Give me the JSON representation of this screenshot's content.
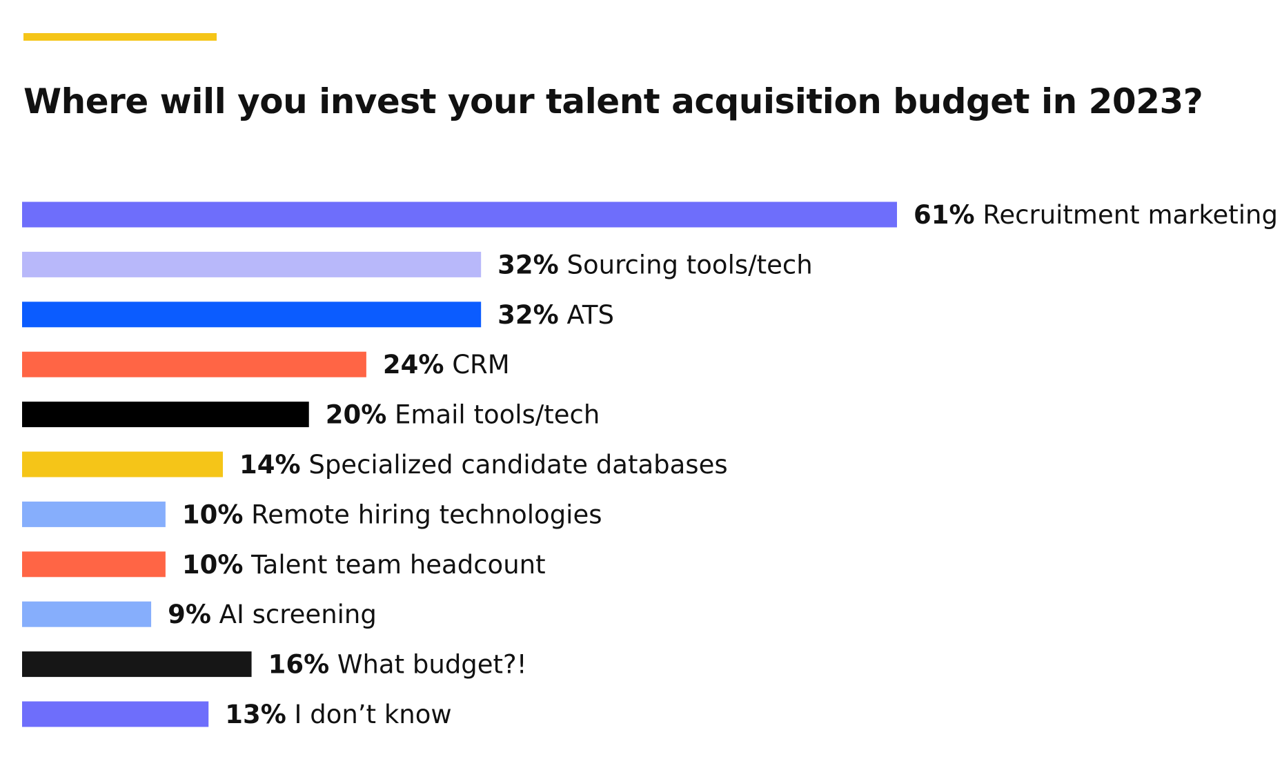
{
  "chart_data": {
    "type": "bar",
    "orientation": "horizontal",
    "title": "Where will you invest your talent acquisition budget in 2023?",
    "accent_color": "#F5C518",
    "unit": "%",
    "xlim": [
      0,
      61
    ],
    "categories": [
      "Recruitment marketing",
      "Sourcing tools/tech",
      "ATS",
      "CRM",
      "Email tools/tech",
      "Specialized candidate databases",
      "Remote hiring technologies",
      "Talent team headcount",
      "AI screening",
      "What budget?!",
      "I don’t know"
    ],
    "values": [
      61,
      32,
      32,
      24,
      20,
      14,
      10,
      10,
      9,
      16,
      13
    ],
    "value_labels": [
      "61%",
      "32%",
      "32%",
      "24%",
      "20%",
      "14%",
      "10%",
      "10%",
      "9%",
      "16%",
      "13%"
    ],
    "colors": [
      "#6E6EFB",
      "#B8B8FA",
      "#0B5CFF",
      "#FF6545",
      "#000000",
      "#F5C518",
      "#86AEFC",
      "#FF6545",
      "#86AEFC",
      "#161616",
      "#6E6EFB"
    ]
  }
}
